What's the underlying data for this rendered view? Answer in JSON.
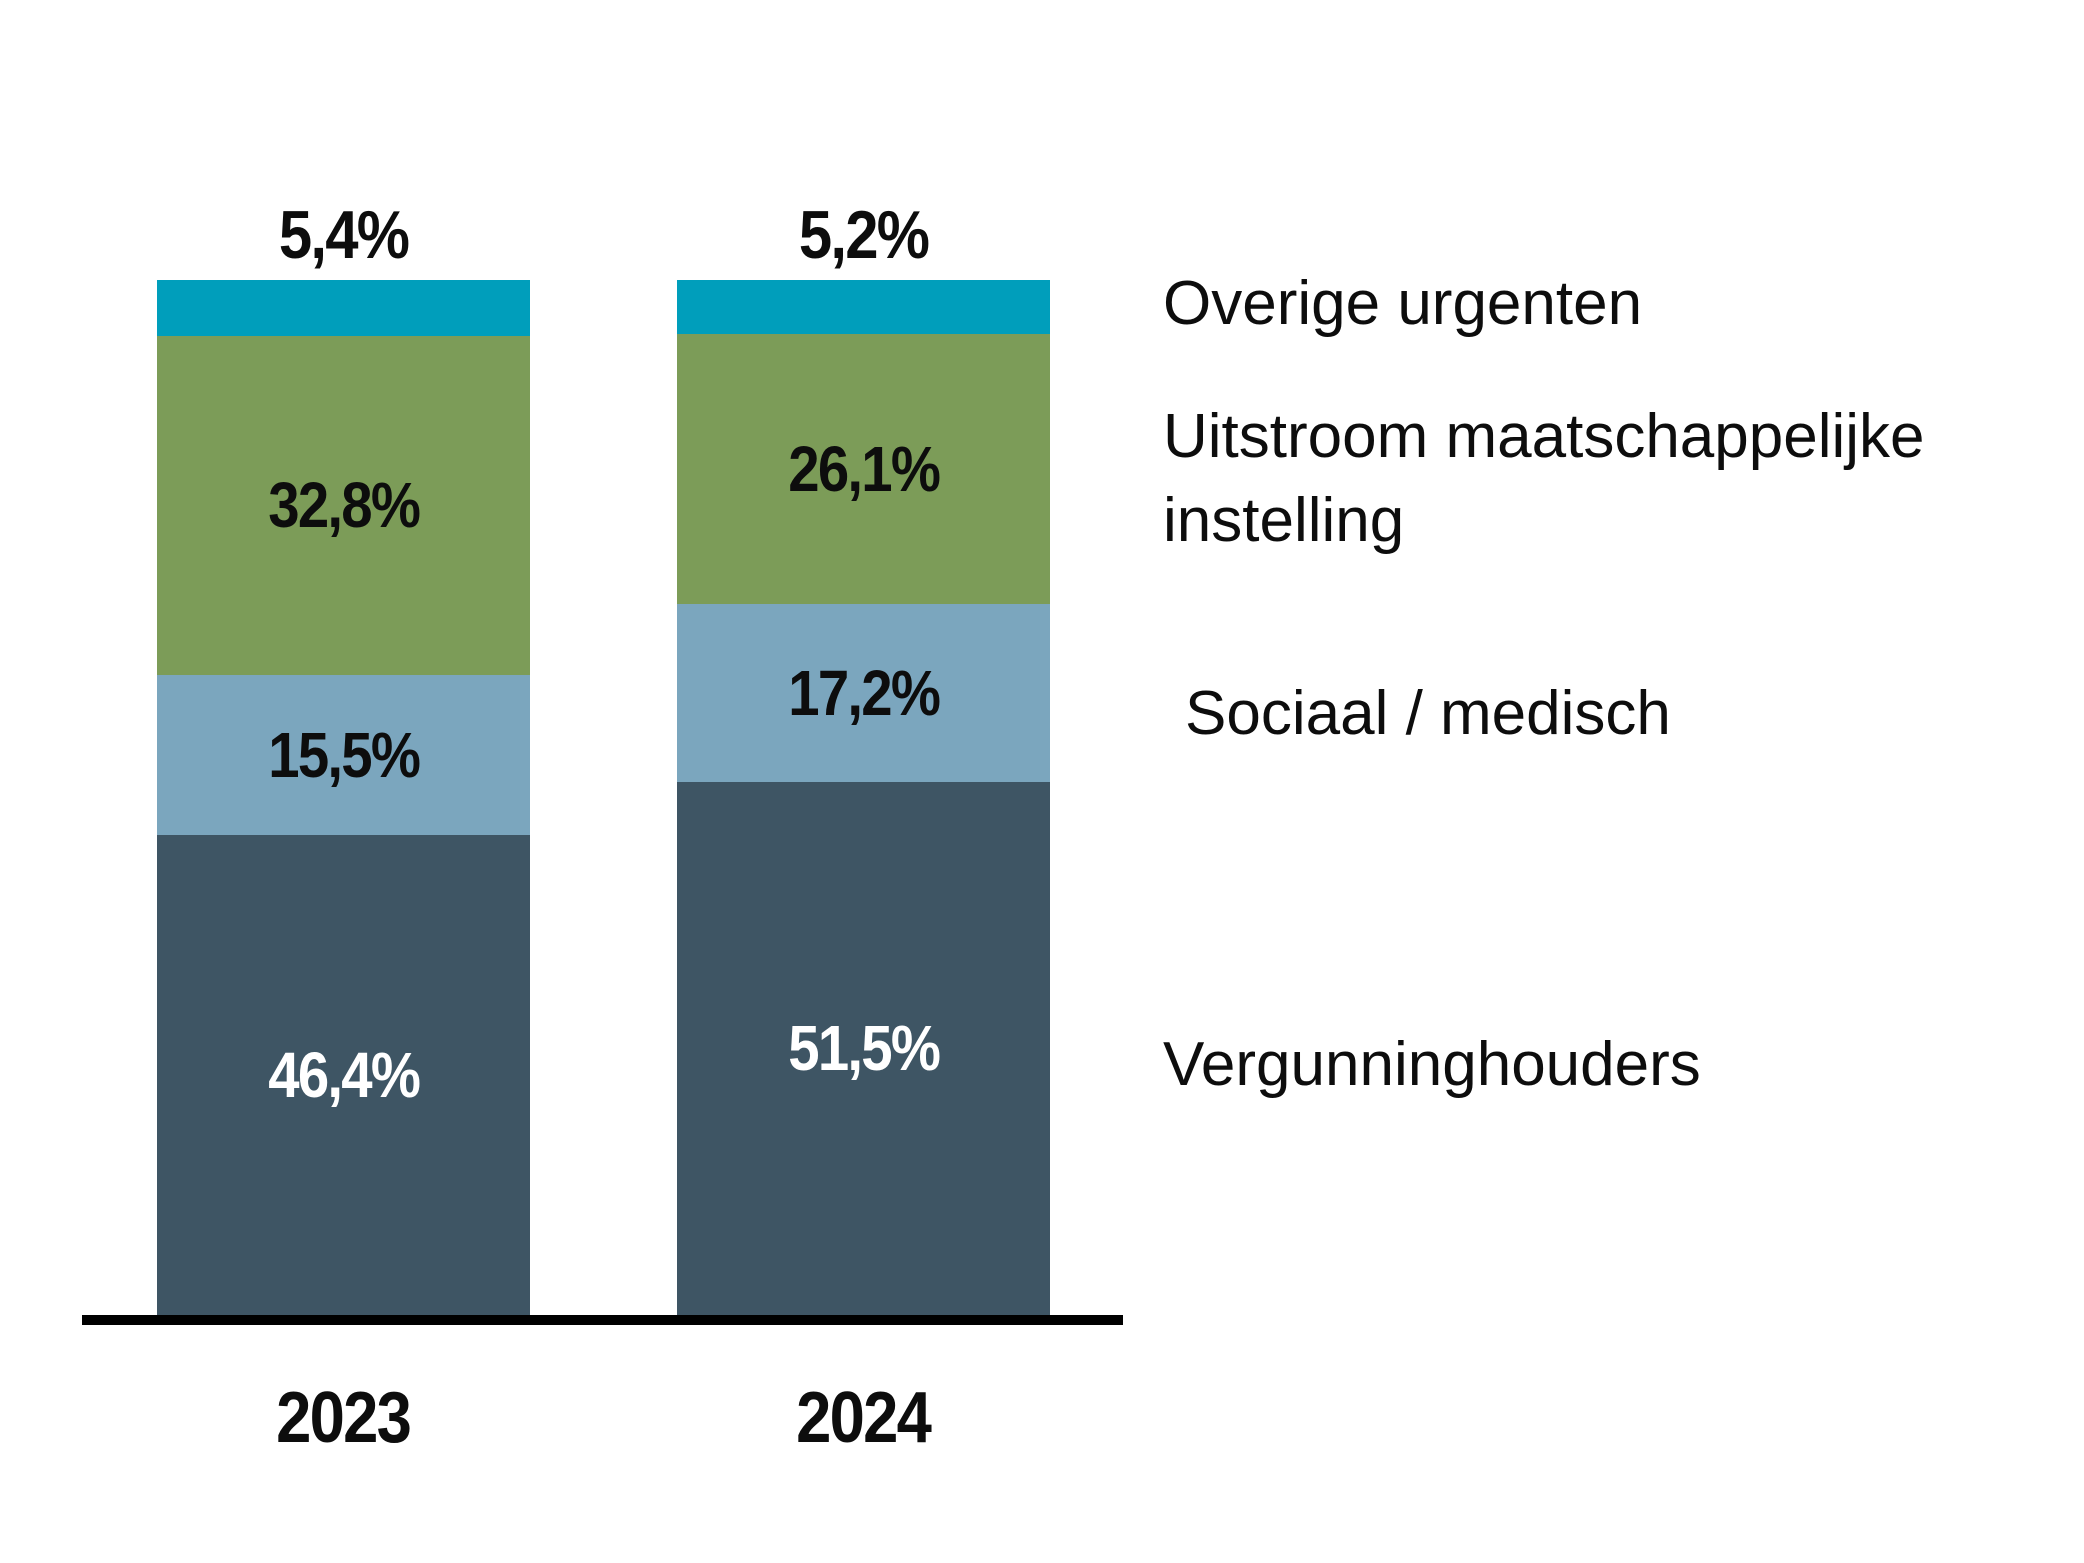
{
  "chart_data": {
    "type": "bar",
    "stacked": true,
    "title": "",
    "xlabel": "",
    "ylabel": "",
    "ylim": [
      0,
      100
    ],
    "grid": false,
    "legend_position": "right",
    "categories": [
      "2023",
      "2024"
    ],
    "series": [
      {
        "name": "Vergunninghouders",
        "slug": "vergunninghouders",
        "color": "#3E5564",
        "text_color": "#FFFFFF",
        "values": [
          46.4,
          51.5
        ],
        "labels": [
          "46,4%",
          "51,5%"
        ],
        "label_position": "inside"
      },
      {
        "name": "Sociaal / medisch",
        "slug": "sociaal-medisch",
        "color": "#7BA6BE",
        "text_color": "#0D0D0D",
        "values": [
          15.5,
          17.2
        ],
        "labels": [
          "15,5%",
          "17,2%"
        ],
        "label_position": "inside"
      },
      {
        "name": "Uitstroom maatschappelijke instelling",
        "slug": "uitstroom-maatschappelijke-instelling",
        "color": "#7C9C58",
        "text_color": "#0D0D0D",
        "values": [
          32.8,
          26.1
        ],
        "labels": [
          "32,8%",
          "26,1%"
        ],
        "label_position": "inside"
      },
      {
        "name": "Overige urgenten",
        "slug": "overige-urgenten",
        "color": "#009EBB",
        "text_color": "#0D0D0D",
        "values": [
          5.4,
          5.2
        ],
        "labels": [
          "5,4%",
          "5,2%"
        ],
        "label_position": "above"
      }
    ],
    "legend": [
      {
        "slug": "overige-urgenten",
        "label_lines": [
          "Overige urgenten"
        ]
      },
      {
        "slug": "uitstroom-maatschappelijke-instelling",
        "label_lines": [
          "Uitstroom maatschappelijke",
          "instelling"
        ]
      },
      {
        "slug": "sociaal-medisch",
        "label_lines": [
          "Sociaal / medisch"
        ]
      },
      {
        "slug": "vergunninghouders",
        "label_lines": [
          "Vergunninghouders"
        ]
      }
    ]
  }
}
